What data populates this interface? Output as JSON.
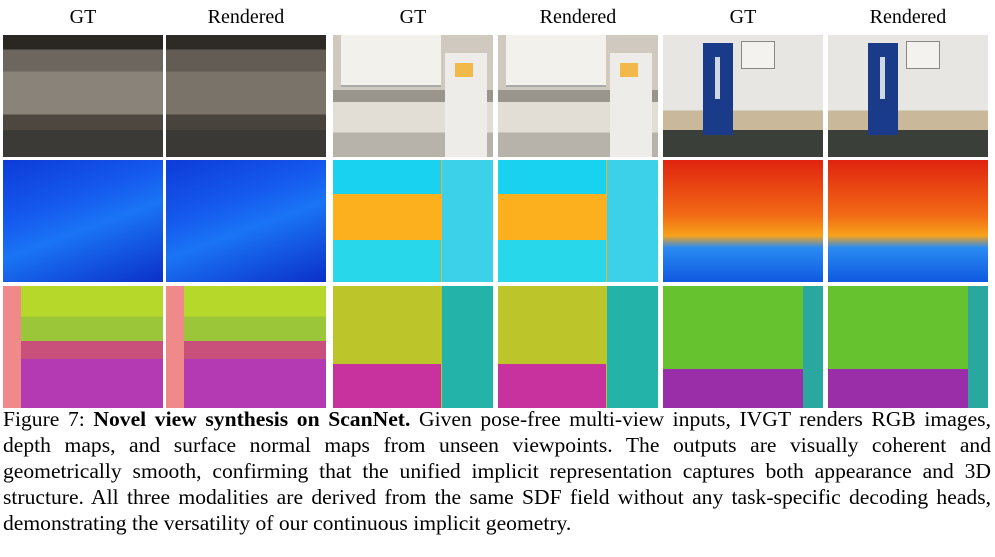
{
  "figure": {
    "column_headers": [
      "GT",
      "Rendered",
      "GT",
      "Rendered",
      "GT",
      "Rendered"
    ],
    "caption": {
      "label": "Figure 7:",
      "title": "Novel view synthesis on ScanNet.",
      "text": "Given pose-free multi-view inputs, IVGT renders RGB images, depth maps, and surface normal maps from unseen viewpoints. The outputs are visually coherent and geometrically smooth, confirming that the unified implicit representation captures both appearance and 3D structure. All three modalities are derived from the same SDF field without any task-specific decoding heads, demonstrating the versatility of our continuous implicit geometry."
    }
  }
}
